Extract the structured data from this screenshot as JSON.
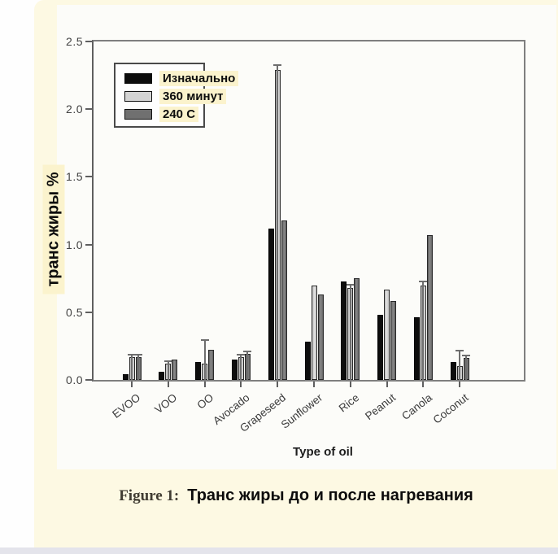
{
  "figure": {
    "caption_prefix": "Figure 1:",
    "caption_text": "Транс жиры до и после нагревания"
  },
  "chart_data": {
    "type": "bar",
    "title": "",
    "xlabel": "Type of oil",
    "ylabel": "транс жиры %",
    "ylim": [
      0,
      2.5
    ],
    "yticks": [
      "0.0",
      "0.5",
      "1.0",
      "1.5",
      "2.0",
      "2.5"
    ],
    "grid": false,
    "legend_position": "upper-left",
    "categories": [
      "EVOO",
      "VOO",
      "OO",
      "Avocado",
      "Grapeseed",
      "Sunflower",
      "Rice",
      "Peanut",
      "Canola",
      "Coconut"
    ],
    "series": [
      {
        "name": "Изначально",
        "color": "#0d0d0d",
        "values": [
          0.04,
          0.06,
          0.13,
          0.15,
          1.12,
          0.28,
          0.73,
          0.48,
          0.46,
          0.13
        ],
        "errors": [
          0,
          0,
          0,
          0,
          0,
          0,
          0,
          0,
          0,
          0
        ]
      },
      {
        "name": "360 минут",
        "color": "#d4d4d4",
        "values": [
          0.17,
          0.12,
          0.12,
          0.17,
          2.29,
          0.7,
          0.68,
          0.67,
          0.7,
          0.1
        ],
        "errors": [
          0.015,
          0.015,
          0.17,
          0.015,
          0.03,
          0,
          0.02,
          0,
          0.025,
          0.11
        ]
      },
      {
        "name": "240 C",
        "color": "#707070",
        "values": [
          0.17,
          0.15,
          0.22,
          0.19,
          1.18,
          0.63,
          0.75,
          0.58,
          1.07,
          0.16
        ],
        "errors": [
          0.015,
          0,
          0,
          0.015,
          0,
          0,
          0,
          0,
          0,
          0.015
        ]
      }
    ]
  },
  "colors": {
    "page_background": "#fefefe",
    "panel_cream": "#fdf9e3",
    "chart_background": "#fcfcf9",
    "highlight_cream": "#fbf3cd",
    "axis_frame": "#7f7f7f",
    "bottom_strip": "#e4e4eb",
    "bar_black": "#0d0d0d",
    "bar_light_gray": "#d4d4d4",
    "bar_dark_gray": "#707070"
  }
}
